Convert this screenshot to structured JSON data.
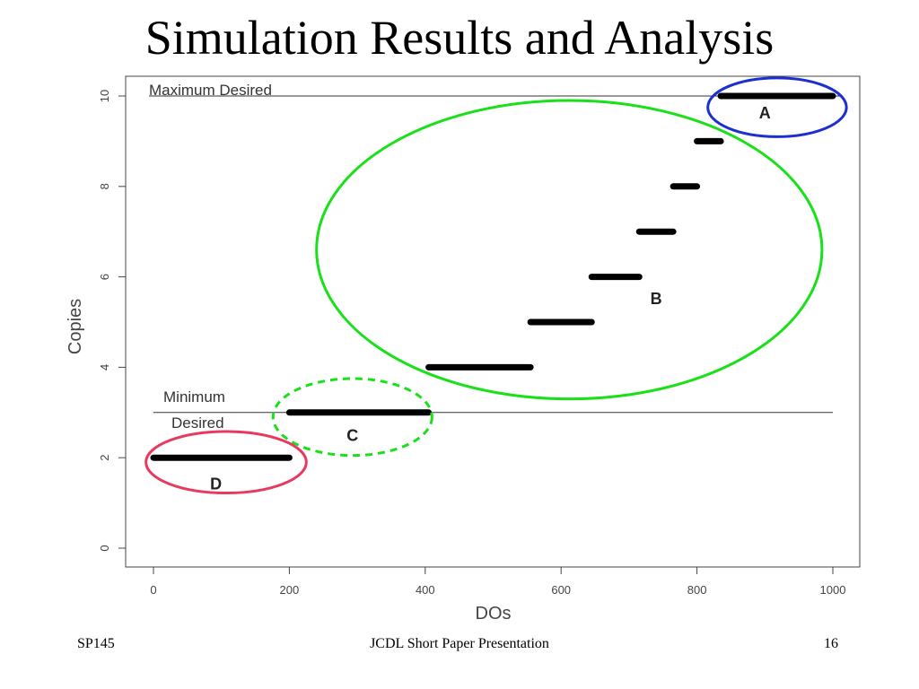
{
  "slide": {
    "title": "Simulation Results and Analysis",
    "footer_left": "SP145",
    "footer_center": "JCDL Short Paper Presentation",
    "footer_right": "16"
  },
  "chart_data": {
    "type": "line",
    "title": "",
    "xlabel": "DOs",
    "ylabel": "Copies",
    "xlim": [
      0,
      1000
    ],
    "ylim": [
      0,
      10
    ],
    "x_ticks": [
      0,
      200,
      400,
      600,
      800,
      1000
    ],
    "y_ticks": [
      0,
      2,
      4,
      6,
      8,
      10
    ],
    "grid": false,
    "series": [
      {
        "segments": [
          {
            "x": [
              0,
              200
            ],
            "y": 2
          },
          {
            "x": [
              200,
              405
            ],
            "y": 3
          },
          {
            "x": [
              405,
              555
            ],
            "y": 4
          },
          {
            "x": [
              555,
              645
            ],
            "y": 5
          },
          {
            "x": [
              645,
              715
            ],
            "y": 6
          },
          {
            "x": [
              715,
              765
            ],
            "y": 7
          },
          {
            "x": [
              765,
              800
            ],
            "y": 8
          },
          {
            "x": [
              800,
              835
            ],
            "y": 9
          },
          {
            "x": [
              835,
              1000
            ],
            "y": 10
          }
        ]
      }
    ],
    "reference_lines": [
      {
        "y": 10,
        "label": "Maximum Desired"
      },
      {
        "y": 3,
        "label_lines": [
          "Minimum",
          "Desired"
        ]
      }
    ],
    "annotations": [
      {
        "label": "A",
        "color": "#1c2fd0",
        "style": "solid",
        "cx": 918,
        "cy": 9.75,
        "rx": 102,
        "ry": 0.65
      },
      {
        "label": "B",
        "color": "#19e019",
        "style": "solid",
        "cx": 612,
        "cy": 6.6,
        "rx": 372,
        "ry": 3.3
      },
      {
        "label": "C",
        "color": "#19e019",
        "style": "dashed",
        "cx": 293,
        "cy": 2.9,
        "rx": 117,
        "ry": 0.85
      },
      {
        "label": "D",
        "color": "#e83a5f",
        "style": "solid",
        "cx": 107,
        "cy": 1.9,
        "rx": 118,
        "ry": 0.68
      }
    ]
  }
}
